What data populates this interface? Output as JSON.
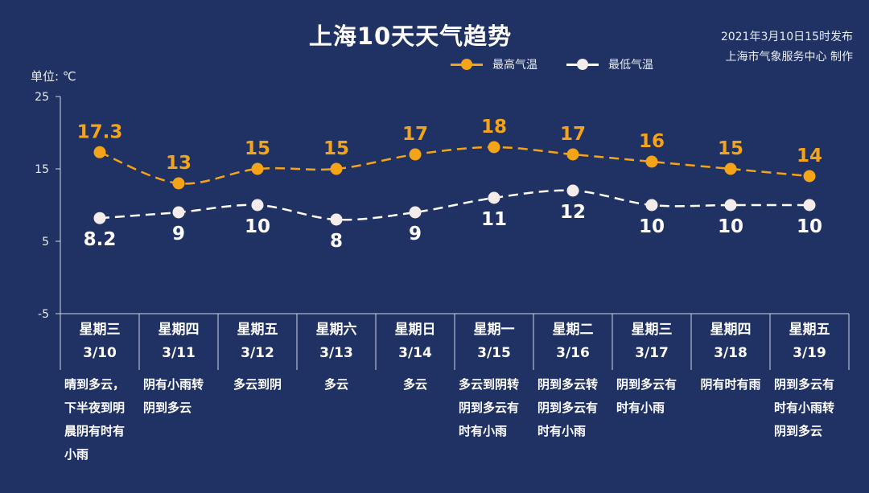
{
  "title": "上海10天天气趋势",
  "publish": {
    "line1": "2021年3月10日15时发布",
    "line2": "上海市气象服务中心 制作"
  },
  "unit_label": "单位: ℃",
  "colors": {
    "background": "#203263",
    "high": "#f5a417",
    "low": "#ffffff",
    "axis": "#cfd6e6"
  },
  "chart_data": {
    "type": "line",
    "ylim": [
      -5,
      25
    ],
    "yticks": [
      "25",
      "15",
      "5",
      "-5"
    ],
    "yticks_values": [
      25,
      15,
      5,
      -5
    ],
    "legend_placement": "top-center",
    "grid": false,
    "categories": [
      "3/10",
      "3/11",
      "3/12",
      "3/13",
      "3/14",
      "3/15",
      "3/16",
      "3/17",
      "3/18",
      "3/19"
    ],
    "weekdays": [
      "星期三",
      "星期四",
      "星期五",
      "星期六",
      "星期日",
      "星期一",
      "星期二",
      "星期三",
      "星期四",
      "星期五"
    ],
    "series": [
      {
        "name": "最高气温",
        "values": [
          17.3,
          13,
          15,
          15,
          17,
          18,
          17,
          16,
          15,
          14
        ],
        "labels": [
          "17.3",
          "13",
          "15",
          "15",
          "17",
          "18",
          "17",
          "16",
          "15",
          "14"
        ]
      },
      {
        "name": "最低气温",
        "values": [
          8.2,
          9,
          10,
          8,
          9,
          11,
          12,
          10,
          10,
          10
        ],
        "labels": [
          "8.2",
          "9",
          "10",
          "8",
          "9",
          "11",
          "12",
          "10",
          "10",
          "10"
        ]
      }
    ]
  },
  "descriptions": [
    "晴到多云，\n下半夜到明\n晨阴有时有\n小雨",
    "阴有小雨转\n阴到多云",
    "多云到阴",
    "多云",
    "多云",
    "多云到阴转\n阴到多云有\n时有小雨",
    "阴到多云转\n阴到多云有\n时有小雨",
    "阴到多云有\n时有小雨",
    "阴有时有雨",
    "阴到多云有\n时有小雨转\n阴到多云"
  ]
}
